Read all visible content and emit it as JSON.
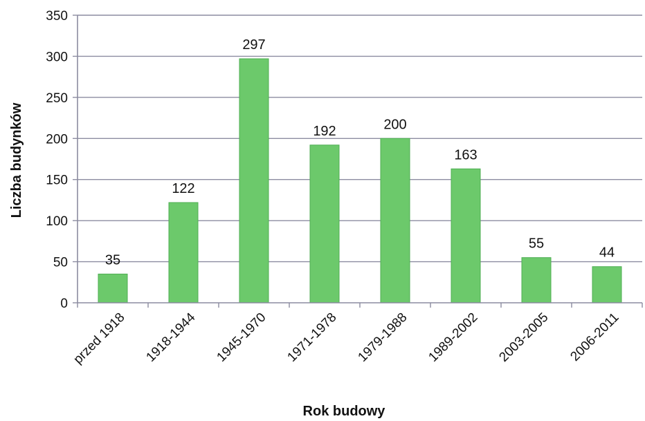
{
  "chart_data": {
    "type": "bar",
    "xlabel": "Rok budowy",
    "ylabel": "Liczba budynków",
    "categories": [
      "przed 1918",
      "1918-1944",
      "1945-1970",
      "1971-1978",
      "1979-1988",
      "1989-2002",
      "2003-2005",
      "2006-2011"
    ],
    "values": [
      35,
      122,
      297,
      192,
      200,
      163,
      55,
      44
    ],
    "data_labels": [
      "35",
      "122",
      "297",
      "192",
      "200",
      "163",
      "55",
      "44"
    ],
    "ylim": [
      0,
      350
    ],
    "yticks": [
      0,
      50,
      100,
      150,
      200,
      250,
      300,
      350
    ],
    "grid": true,
    "legend": "none",
    "colors": {
      "bar": "#6cc96b",
      "bar_edge": "#4fae53",
      "grid": "#8c8ca0",
      "axis": "#8c8ca0"
    }
  }
}
